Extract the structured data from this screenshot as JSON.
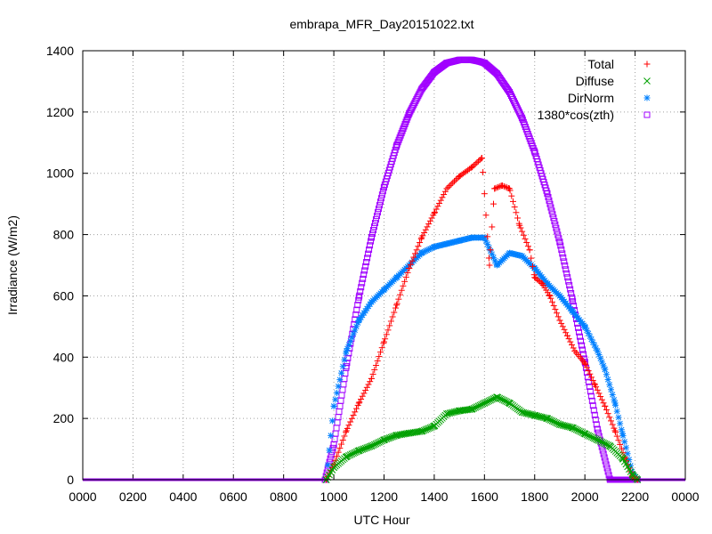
{
  "chart_data": {
    "type": "scatter",
    "title": "embrapa_MFR_Day20151022.txt",
    "xlabel": "UTC Hour",
    "ylabel": "Irradiance (W/m2)",
    "xlim": [
      0,
      24
    ],
    "ylim": [
      0,
      1400
    ],
    "xticks": [
      0,
      2,
      4,
      6,
      8,
      10,
      12,
      14,
      16,
      18,
      20,
      22,
      24
    ],
    "xtick_labels": [
      "0000",
      "0200",
      "0400",
      "0600",
      "0800",
      "1000",
      "1200",
      "1400",
      "1600",
      "1800",
      "2000",
      "2200",
      "0000"
    ],
    "yticks": [
      0,
      200,
      400,
      600,
      800,
      1000,
      1200,
      1400
    ],
    "ytick_labels": [
      "0",
      "200",
      "400",
      "600",
      "800",
      "1000",
      "1200",
      "1400"
    ],
    "grid": true,
    "legend_position": "top-right",
    "series": [
      {
        "name": "Total",
        "marker": "plus",
        "color": "#ff0000",
        "x": [
          9.7,
          10.0,
          10.5,
          11.0,
          11.5,
          12.0,
          12.5,
          13.0,
          13.5,
          14.0,
          14.5,
          15.0,
          15.5,
          15.9,
          16.2,
          16.4,
          16.7,
          17.0,
          17.4,
          17.8,
          18.0,
          18.3,
          18.6,
          19.0,
          19.3,
          19.6,
          20.0,
          20.4,
          20.8,
          21.2,
          21.6,
          21.9,
          22.1
        ],
        "y": [
          0,
          50,
          160,
          250,
          330,
          450,
          570,
          690,
          790,
          870,
          950,
          990,
          1020,
          1050,
          700,
          950,
          960,
          950,
          830,
          750,
          660,
          640,
          600,
          520,
          470,
          420,
          380,
          310,
          240,
          160,
          70,
          10,
          0
        ]
      },
      {
        "name": "Diffuse",
        "marker": "cross",
        "color": "#00a000",
        "x": [
          9.7,
          10.0,
          10.5,
          11.0,
          11.5,
          12.0,
          12.5,
          13.0,
          13.5,
          14.0,
          14.5,
          15.0,
          15.5,
          16.0,
          16.5,
          17.0,
          17.5,
          18.0,
          18.5,
          19.0,
          19.5,
          20.0,
          20.5,
          21.0,
          21.5,
          21.9,
          22.1
        ],
        "y": [
          0,
          40,
          75,
          95,
          110,
          130,
          145,
          152,
          158,
          175,
          215,
          225,
          230,
          250,
          270,
          250,
          220,
          210,
          200,
          180,
          170,
          150,
          130,
          110,
          70,
          15,
          0
        ]
      },
      {
        "name": "DirNorm",
        "marker": "star",
        "color": "#0080ff",
        "x": [
          9.7,
          10.0,
          10.5,
          11.0,
          11.5,
          12.0,
          12.5,
          13.0,
          13.5,
          14.0,
          14.5,
          15.0,
          15.5,
          16.0,
          16.5,
          17.0,
          17.5,
          18.0,
          18.5,
          19.0,
          19.5,
          20.0,
          20.5,
          20.8,
          21.2,
          21.5,
          21.9,
          22.1
        ],
        "y": [
          0,
          240,
          420,
          520,
          580,
          620,
          660,
          700,
          740,
          760,
          770,
          780,
          790,
          790,
          700,
          740,
          730,
          690,
          640,
          600,
          550,
          500,
          420,
          360,
          250,
          150,
          20,
          0
        ]
      },
      {
        "name": "1380*cos(zth)",
        "marker": "square",
        "color": "#a000ff",
        "x": [
          9.65,
          10.0,
          10.5,
          11.0,
          11.5,
          12.0,
          12.5,
          13.0,
          13.5,
          14.0,
          14.5,
          15.0,
          15.5,
          15.8,
          16.0,
          16.5,
          17.0,
          17.5,
          18.0,
          18.5,
          19.0,
          19.5,
          20.0,
          20.5,
          21.0,
          21.5,
          22.0,
          22.1
        ],
        "y": [
          0,
          115,
          370,
          595,
          790,
          955,
          1090,
          1195,
          1275,
          1330,
          1360,
          1370,
          1370,
          1365,
          1360,
          1325,
          1265,
          1180,
          1070,
          935,
          775,
          590,
          385,
          165,
          0,
          0,
          0,
          0
        ]
      }
    ]
  }
}
